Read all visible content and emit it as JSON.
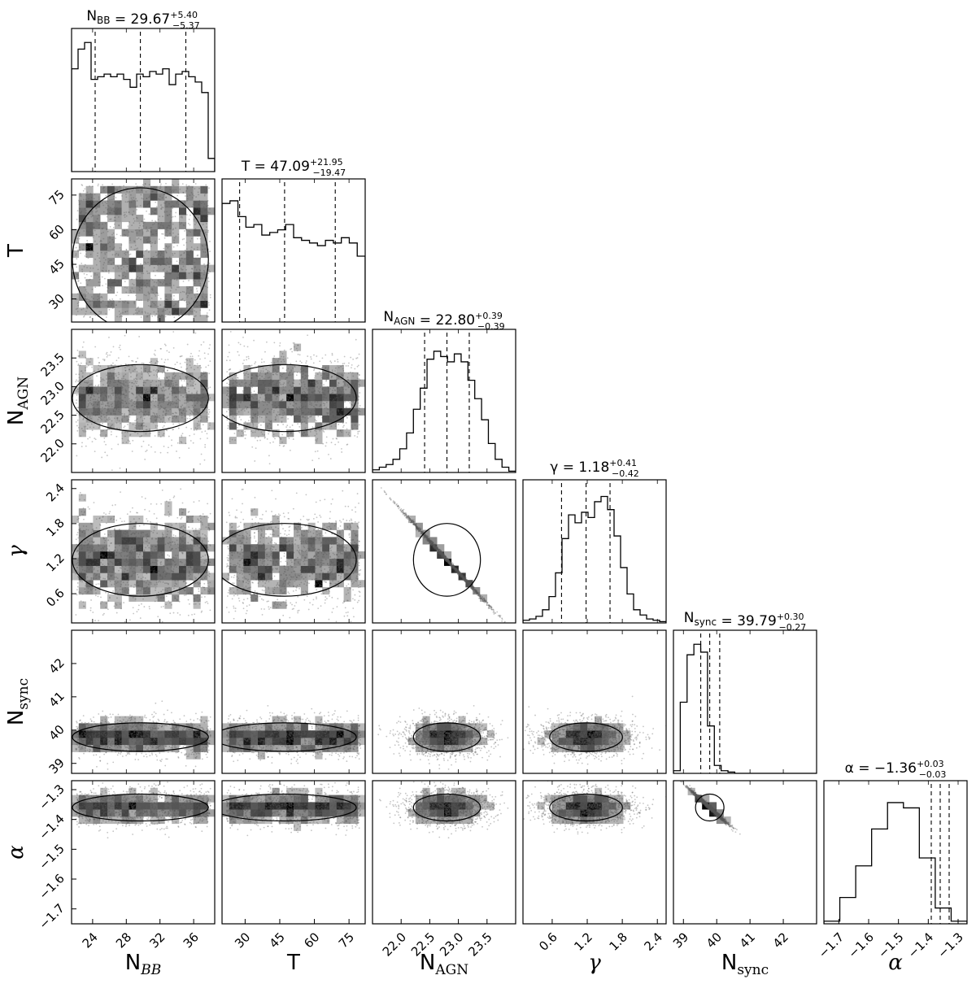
{
  "chart_data": {
    "type": "corner",
    "parameters": [
      {
        "key": "NBB",
        "label_main": "N",
        "label_sub": "BB",
        "title": "= 29.67",
        "title_plus": "+5.40",
        "title_minus": "−5.37",
        "range": [
          21.5,
          38.5
        ],
        "ticks": [
          24,
          28,
          32,
          36
        ],
        "median": 29.67,
        "q16": 24.3,
        "q84": 35.07,
        "hist": [
          0.78,
          0.93,
          0.98,
          0.7,
          0.72,
          0.74,
          0.72,
          0.74,
          0.7,
          0.64,
          0.74,
          0.72,
          0.76,
          0.74,
          0.78,
          0.66,
          0.74,
          0.76,
          0.72,
          0.68,
          0.6,
          0.1
        ]
      },
      {
        "key": "T",
        "label_main": "T",
        "label_sub": "",
        "title": "= 47.09",
        "title_plus": "+21.95",
        "title_minus": "−19.47",
        "range": [
          20,
          82
        ],
        "ticks": [
          30,
          45,
          60,
          75
        ],
        "median": 47.09,
        "q16": 27.62,
        "q84": 69.04,
        "hist": [
          0.9,
          0.92,
          0.8,
          0.72,
          0.74,
          0.66,
          0.68,
          0.7,
          0.74,
          0.64,
          0.62,
          0.6,
          0.58,
          0.62,
          0.6,
          0.64,
          0.6,
          0.5
        ]
      },
      {
        "key": "NAGN",
        "label_main": "N",
        "label_sub": "AGN",
        "title": "= 22.80",
        "title_plus": "+0.39",
        "title_minus": "−0.39",
        "range": [
          21.5,
          24.0
        ],
        "ticks": [
          22.0,
          22.5,
          23.0,
          23.5
        ],
        "median": 22.8,
        "q16": 22.41,
        "q84": 23.19,
        "hist": [
          0.02,
          0.04,
          0.06,
          0.1,
          0.18,
          0.3,
          0.48,
          0.64,
          0.86,
          0.92,
          0.88,
          0.84,
          0.9,
          0.84,
          0.7,
          0.56,
          0.4,
          0.22,
          0.1,
          0.04,
          0.01
        ]
      },
      {
        "key": "gamma",
        "label_main": "γ",
        "label_sub": "",
        "title": "= 1.18",
        "title_plus": "+0.41",
        "title_minus": "−0.42",
        "range": [
          0.1,
          2.55
        ],
        "ticks": [
          0.6,
          1.2,
          1.8,
          2.4
        ],
        "median": 1.18,
        "q16": 0.76,
        "q84": 1.59,
        "hist": [
          0.02,
          0.03,
          0.05,
          0.1,
          0.2,
          0.38,
          0.64,
          0.82,
          0.76,
          0.84,
          0.8,
          0.92,
          0.96,
          0.86,
          0.66,
          0.42,
          0.22,
          0.1,
          0.06,
          0.03,
          0.02,
          0.01
        ]
      },
      {
        "key": "Nsync",
        "label_main": "N",
        "label_sub": "sync",
        "title": "= 39.79",
        "title_plus": "+0.30",
        "title_minus": "−0.27",
        "range": [
          38.7,
          43.0
        ],
        "ticks": [
          39,
          40,
          41,
          42
        ],
        "median": 39.79,
        "q16": 39.52,
        "q84": 40.09,
        "hist": [
          0.02,
          0.54,
          0.9,
          0.98,
          0.92,
          0.36,
          0.06,
          0.02,
          0.01,
          0,
          0,
          0,
          0,
          0,
          0,
          0,
          0,
          0,
          0,
          0,
          0
        ]
      },
      {
        "key": "alpha",
        "label_main": "α",
        "label_sub": "",
        "title": "= −1.36",
        "title_plus": "+0.03",
        "title_minus": "−0.03",
        "range": [
          -1.75,
          -1.27
        ],
        "ticks": [
          -1.7,
          -1.6,
          -1.5,
          -1.4,
          -1.3
        ],
        "tick_labels": [
          "−1.7",
          "−1.6",
          "−1.5",
          "−1.4",
          "−1.3"
        ],
        "median": -1.36,
        "q16": -1.39,
        "q84": -1.33,
        "hist": [
          0.02,
          0.2,
          0.44,
          0.72,
          0.92,
          0.88,
          0.5,
          0.12,
          0.02
        ]
      }
    ],
    "y_tick_labels": {
      "NAGN": [
        "22.0",
        "22.5",
        "23.0",
        "23.5"
      ],
      "alpha": [
        "−1.7",
        "−1.6",
        "−1.5",
        "−1.4",
        "−1.3"
      ]
    },
    "x_tick_labels": {
      "NAGN": [
        "22.0",
        "22.5",
        "23.0",
        "23.5"
      ]
    }
  }
}
